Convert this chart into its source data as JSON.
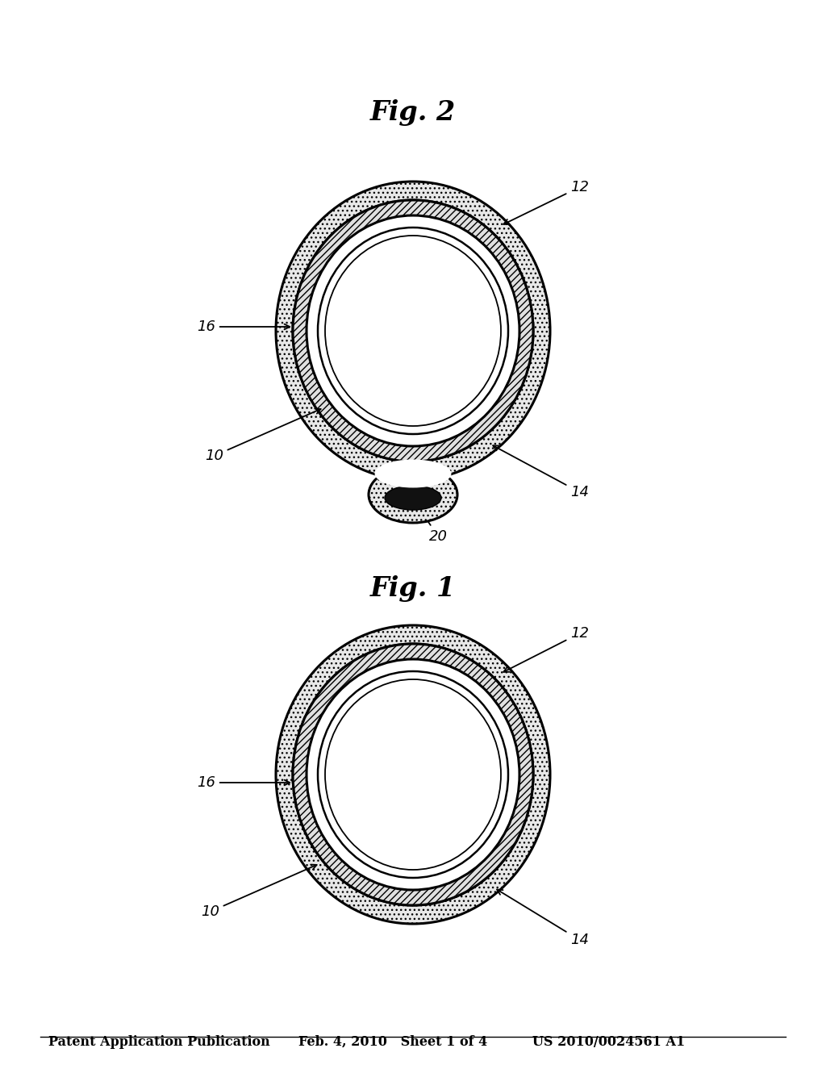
{
  "bg_color": "#ffffff",
  "header_text": "Patent Application Publication",
  "header_date": "Feb. 4, 2010   Sheet 1 of 4",
  "header_patent": "US 2010/0024561 A1",
  "header_fontsize": 11.5,
  "fig1_label": "Fig. 1",
  "fig2_label": "Fig. 2",
  "line_color": "#000000",
  "label_fontsize": 13,
  "fig_label_fontsize": 24
}
